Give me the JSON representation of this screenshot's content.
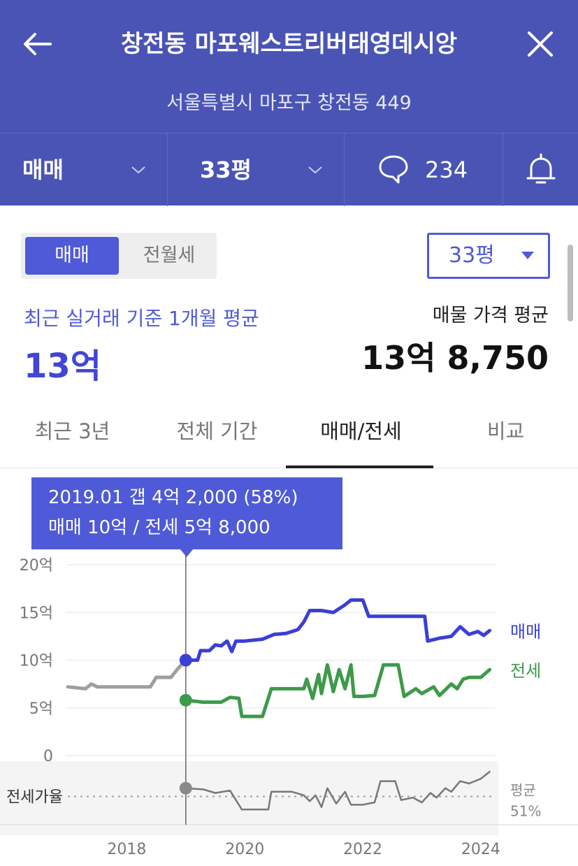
{
  "header": {
    "title": "창전동 마포웨스트리버태영데시앙",
    "address": "서울특별시 마포구 창전동 449"
  },
  "filterbar": {
    "deal_type": "매매",
    "size": "33평",
    "comment_count": "234"
  },
  "toggle": {
    "on": "매매",
    "off": "전월세"
  },
  "size_select": "33평",
  "summary": {
    "recent_label": "최근 실거래 기준 1개월 평균",
    "recent_value": "13억",
    "listing_label": "매물 가격 평균",
    "listing_value": "13억 8,750"
  },
  "tabs": [
    {
      "label": "최근 3년",
      "active": false
    },
    {
      "label": "전체 기간",
      "active": false
    },
    {
      "label": "매매/전세",
      "active": true
    },
    {
      "label": "비교",
      "active": false
    }
  ],
  "tooltip": {
    "line1": "2019.01  갭 4억 2,000 (58%)",
    "line2": "매매 10억 / 전세 5억 8,000"
  },
  "colors": {
    "brand": "#4a54b5",
    "accent": "#4f5ad8",
    "sale": "#3b3fd6",
    "jeonse": "#3d9a4a",
    "gray": "#9e9e9e"
  },
  "chart_data": {
    "type": "line",
    "y_unit": "억",
    "yticks": [
      "20억",
      "15억",
      "10억",
      "5억",
      "0"
    ],
    "ylim": [
      0,
      20
    ],
    "xticks": [
      "2018",
      "2020",
      "2022",
      "2024"
    ],
    "xlim": [
      2017.0,
      2024.25
    ],
    "ratio_label": "전세가율",
    "average_label": "평균",
    "average_value": "51%",
    "selected": {
      "x": 2019.0,
      "sale": 10,
      "jeonse": 5.8
    },
    "series": [
      {
        "name": "매매",
        "points": [
          [
            2019.0,
            10
          ],
          [
            2019.2,
            10
          ],
          [
            2019.25,
            11
          ],
          [
            2019.4,
            11
          ],
          [
            2019.5,
            11.6
          ],
          [
            2019.6,
            11.5
          ],
          [
            2019.7,
            12
          ],
          [
            2019.78,
            10.9
          ],
          [
            2019.85,
            12
          ],
          [
            2020.0,
            12
          ],
          [
            2020.3,
            12.2
          ],
          [
            2020.5,
            12.7
          ],
          [
            2020.7,
            12.8
          ],
          [
            2020.9,
            13.2
          ],
          [
            2021.0,
            14
          ],
          [
            2021.1,
            15.2
          ],
          [
            2021.3,
            15.2
          ],
          [
            2021.5,
            15.0
          ],
          [
            2021.7,
            15.8
          ],
          [
            2021.8,
            16.3
          ],
          [
            2022.0,
            16.3
          ],
          [
            2022.1,
            14.6
          ],
          [
            2022.5,
            14.6
          ],
          [
            2022.9,
            14.6
          ],
          [
            2023.05,
            14.6
          ],
          [
            2023.1,
            12.0
          ],
          [
            2023.3,
            12.3
          ],
          [
            2023.5,
            12.5
          ],
          [
            2023.65,
            13.5
          ],
          [
            2023.8,
            12.7
          ],
          [
            2023.95,
            13.0
          ],
          [
            2024.05,
            12.6
          ],
          [
            2024.15,
            13.1
          ]
        ]
      },
      {
        "name": "전세",
        "points": [
          [
            2019.0,
            5.8
          ],
          [
            2019.3,
            5.6
          ],
          [
            2019.6,
            5.6
          ],
          [
            2019.75,
            6.1
          ],
          [
            2019.9,
            6.0
          ],
          [
            2019.95,
            4.1
          ],
          [
            2020.3,
            4.1
          ],
          [
            2020.45,
            7.0
          ],
          [
            2020.8,
            7.0
          ],
          [
            2021.0,
            7.0
          ],
          [
            2021.05,
            8.0
          ],
          [
            2021.15,
            6.0
          ],
          [
            2021.25,
            8.5
          ],
          [
            2021.3,
            6.5
          ],
          [
            2021.4,
            9.5
          ],
          [
            2021.5,
            6.7
          ],
          [
            2021.6,
            9.0
          ],
          [
            2021.7,
            7.0
          ],
          [
            2021.8,
            9.5
          ],
          [
            2021.85,
            6.2
          ],
          [
            2022.0,
            6.2
          ],
          [
            2022.2,
            6.3
          ],
          [
            2022.35,
            9.5
          ],
          [
            2022.6,
            9.5
          ],
          [
            2022.7,
            6.2
          ],
          [
            2022.9,
            7.0
          ],
          [
            2023.0,
            6.5
          ],
          [
            2023.2,
            7.2
          ],
          [
            2023.3,
            6.3
          ],
          [
            2023.5,
            7.5
          ],
          [
            2023.6,
            7.0
          ],
          [
            2023.7,
            8.0
          ],
          [
            2023.8,
            8.2
          ],
          [
            2024.0,
            8.2
          ],
          [
            2024.15,
            9.0
          ]
        ]
      },
      {
        "name": "과거 매매",
        "points": [
          [
            2017.0,
            7.2
          ],
          [
            2017.3,
            7.0
          ],
          [
            2017.4,
            7.5
          ],
          [
            2017.5,
            7.2
          ],
          [
            2018.0,
            7.2
          ],
          [
            2018.4,
            7.2
          ],
          [
            2018.5,
            8.2
          ],
          [
            2018.75,
            8.2
          ],
          [
            2018.85,
            9.0
          ],
          [
            2019.0,
            10.0
          ]
        ]
      },
      {
        "name": "전세가율",
        "points": [
          [
            2019.0,
            58
          ],
          [
            2019.3,
            57
          ],
          [
            2019.5,
            54
          ],
          [
            2019.75,
            56
          ],
          [
            2019.95,
            40
          ],
          [
            2020.4,
            40
          ],
          [
            2020.45,
            55
          ],
          [
            2020.8,
            55
          ],
          [
            2021.0,
            52
          ],
          [
            2021.1,
            47
          ],
          [
            2021.2,
            52
          ],
          [
            2021.3,
            42
          ],
          [
            2021.4,
            58
          ],
          [
            2021.55,
            45
          ],
          [
            2021.7,
            55
          ],
          [
            2021.8,
            44
          ],
          [
            2022.0,
            44
          ],
          [
            2022.2,
            46
          ],
          [
            2022.3,
            64
          ],
          [
            2022.55,
            64
          ],
          [
            2022.65,
            48
          ],
          [
            2022.85,
            50
          ],
          [
            2023.0,
            46
          ],
          [
            2023.15,
            54
          ],
          [
            2023.25,
            50
          ],
          [
            2023.4,
            58
          ],
          [
            2023.5,
            55
          ],
          [
            2023.65,
            64
          ],
          [
            2023.8,
            62
          ],
          [
            2024.0,
            66
          ],
          [
            2024.15,
            72
          ]
        ]
      }
    ]
  }
}
